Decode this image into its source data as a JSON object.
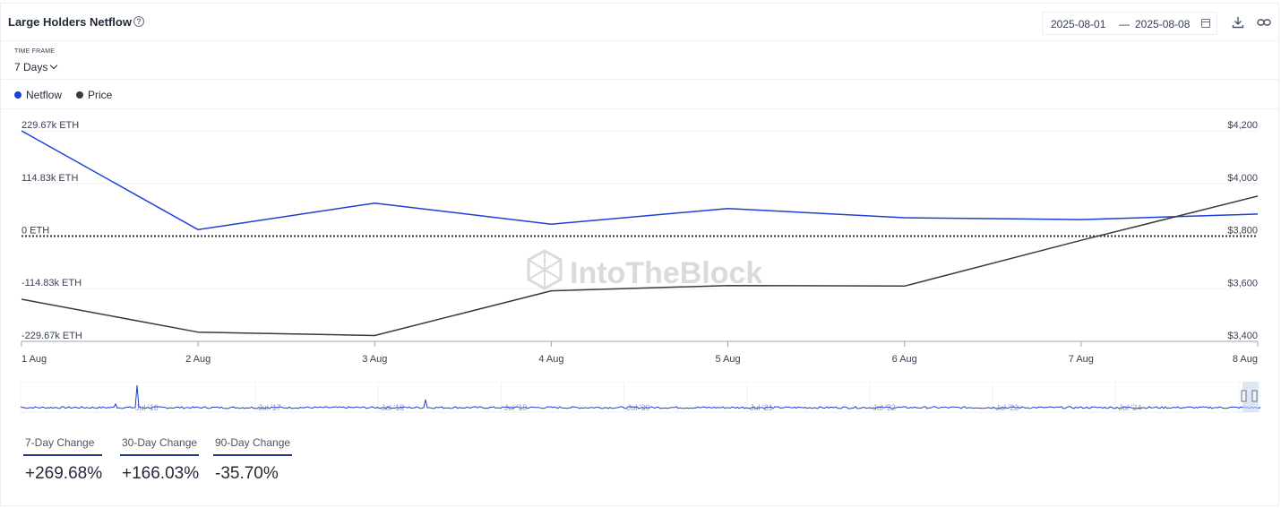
{
  "header": {
    "title": "Large Holders Netflow",
    "date_from": "2025-08-01",
    "date_sep": "—",
    "date_to": "2025-08-08"
  },
  "timeframe": {
    "label": "TIME FRAME",
    "value": "7 Days"
  },
  "legend": [
    {
      "name": "Netflow",
      "color": "#1d3fd6"
    },
    {
      "name": "Price",
      "color": "#3a3a3a"
    }
  ],
  "watermark": "IntoTheBlock",
  "chart_data": {
    "type": "line",
    "x": [
      "1 Aug",
      "2 Aug",
      "3 Aug",
      "4 Aug",
      "5 Aug",
      "6 Aug",
      "7 Aug",
      "8 Aug"
    ],
    "series": [
      {
        "name": "Netflow",
        "axis": "left",
        "color": "#1d3fd6",
        "values": [
          229.67,
          14,
          72,
          26,
          60,
          40,
          36,
          48
        ]
      },
      {
        "name": "Price",
        "axis": "right",
        "color": "#3a3a3a",
        "values": [
          3560,
          3435,
          3422,
          3592,
          3612,
          3610,
          3784,
          3952
        ]
      }
    ],
    "y_left": {
      "min": -229.67,
      "max": 229.67,
      "ticks": [
        229.67,
        114.83,
        0,
        -114.83,
        -229.67
      ],
      "tick_labels": [
        "229.67k ETH",
        "114.83k ETH",
        "0 ETH",
        "-114.83k ETH",
        "-229.67k ETH"
      ]
    },
    "y_right": {
      "min": 3400,
      "max": 4200,
      "ticks": [
        4200,
        4000,
        3800,
        3600,
        3400
      ],
      "tick_labels": [
        "$4,200",
        "$4,000",
        "$3,800",
        "$3,600",
        "$3,400"
      ]
    },
    "zero_line": "dotted",
    "grid": true
  },
  "navigator": {
    "labels": [
      "Jul '16",
      "Jul '17",
      "Jul '18",
      "Jul '19",
      "Jul '20",
      "Jul '21",
      "Jul '22",
      "Jul '23",
      "Jul '24"
    ],
    "color": "#1d3fd6"
  },
  "changes": [
    {
      "label": "7-Day Change",
      "value": "+269.68%"
    },
    {
      "label": "30-Day Change",
      "value": "+166.03%"
    },
    {
      "label": "90-Day Change",
      "value": "-35.70%"
    }
  ]
}
